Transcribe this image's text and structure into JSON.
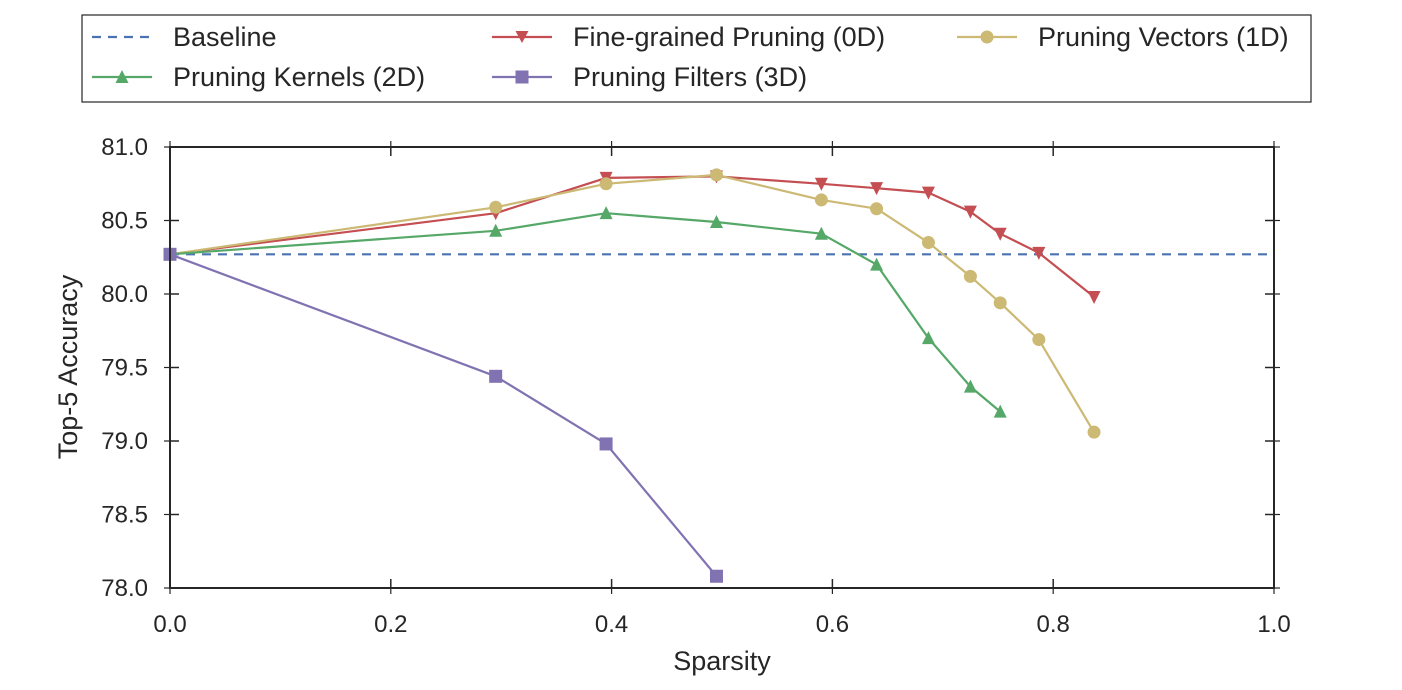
{
  "chart_data": {
    "type": "line",
    "title": "",
    "xlabel": "Sparsity",
    "ylabel": "Top-5 Accuracy",
    "xlim": [
      0.0,
      1.0
    ],
    "ylim": [
      78.0,
      81.0
    ],
    "xticks": [
      0.0,
      0.2,
      0.4,
      0.6,
      0.8,
      1.0
    ],
    "xtick_labels": [
      "0.0",
      "0.2",
      "0.4",
      "0.6",
      "0.8",
      "1.0"
    ],
    "yticks": [
      78.0,
      78.5,
      79.0,
      79.5,
      80.0,
      80.5,
      81.0
    ],
    "ytick_labels": [
      "78.0",
      "78.5",
      "79.0",
      "79.5",
      "80.0",
      "80.5",
      "81.0"
    ],
    "grid": false,
    "legend_position": "top (outside plot, framed)",
    "baseline": {
      "name": "Baseline",
      "value": 80.27,
      "color": "#4c72b0",
      "style": "dashed"
    },
    "series": [
      {
        "name": "Fine-grained Pruning (0D)",
        "color": "#c44e52",
        "marker": "triangle-down",
        "x": [
          0.0,
          0.295,
          0.395,
          0.495,
          0.59,
          0.64,
          0.687,
          0.725,
          0.752,
          0.787,
          0.837
        ],
        "y": [
          80.27,
          80.55,
          80.79,
          80.8,
          80.75,
          80.72,
          80.69,
          80.56,
          80.41,
          80.28,
          79.98
        ]
      },
      {
        "name": "Pruning Vectors (1D)",
        "color": "#ccb974",
        "marker": "circle",
        "x": [
          0.0,
          0.295,
          0.395,
          0.495,
          0.59,
          0.64,
          0.687,
          0.725,
          0.752,
          0.787,
          0.837
        ],
        "y": [
          80.27,
          80.59,
          80.75,
          80.81,
          80.64,
          80.58,
          80.35,
          80.12,
          79.94,
          79.69,
          79.06
        ]
      },
      {
        "name": "Pruning Kernels (2D)",
        "color": "#55a868",
        "marker": "triangle-up",
        "x": [
          0.0,
          0.295,
          0.395,
          0.495,
          0.59,
          0.64,
          0.687,
          0.725,
          0.752
        ],
        "y": [
          80.27,
          80.43,
          80.55,
          80.49,
          80.41,
          80.2,
          79.7,
          79.37,
          79.2
        ]
      },
      {
        "name": "Pruning Filters (3D)",
        "color": "#8172b2",
        "marker": "square",
        "x": [
          0.0,
          0.295,
          0.395,
          0.495
        ],
        "y": [
          80.27,
          79.44,
          78.98,
          78.08
        ]
      }
    ],
    "legend": {
      "row1": [
        "Baseline",
        "Fine-grained Pruning (0D)",
        "Pruning Vectors (1D)"
      ],
      "row2": [
        "Pruning Kernels (2D)",
        "Pruning Filters (3D)"
      ]
    }
  }
}
